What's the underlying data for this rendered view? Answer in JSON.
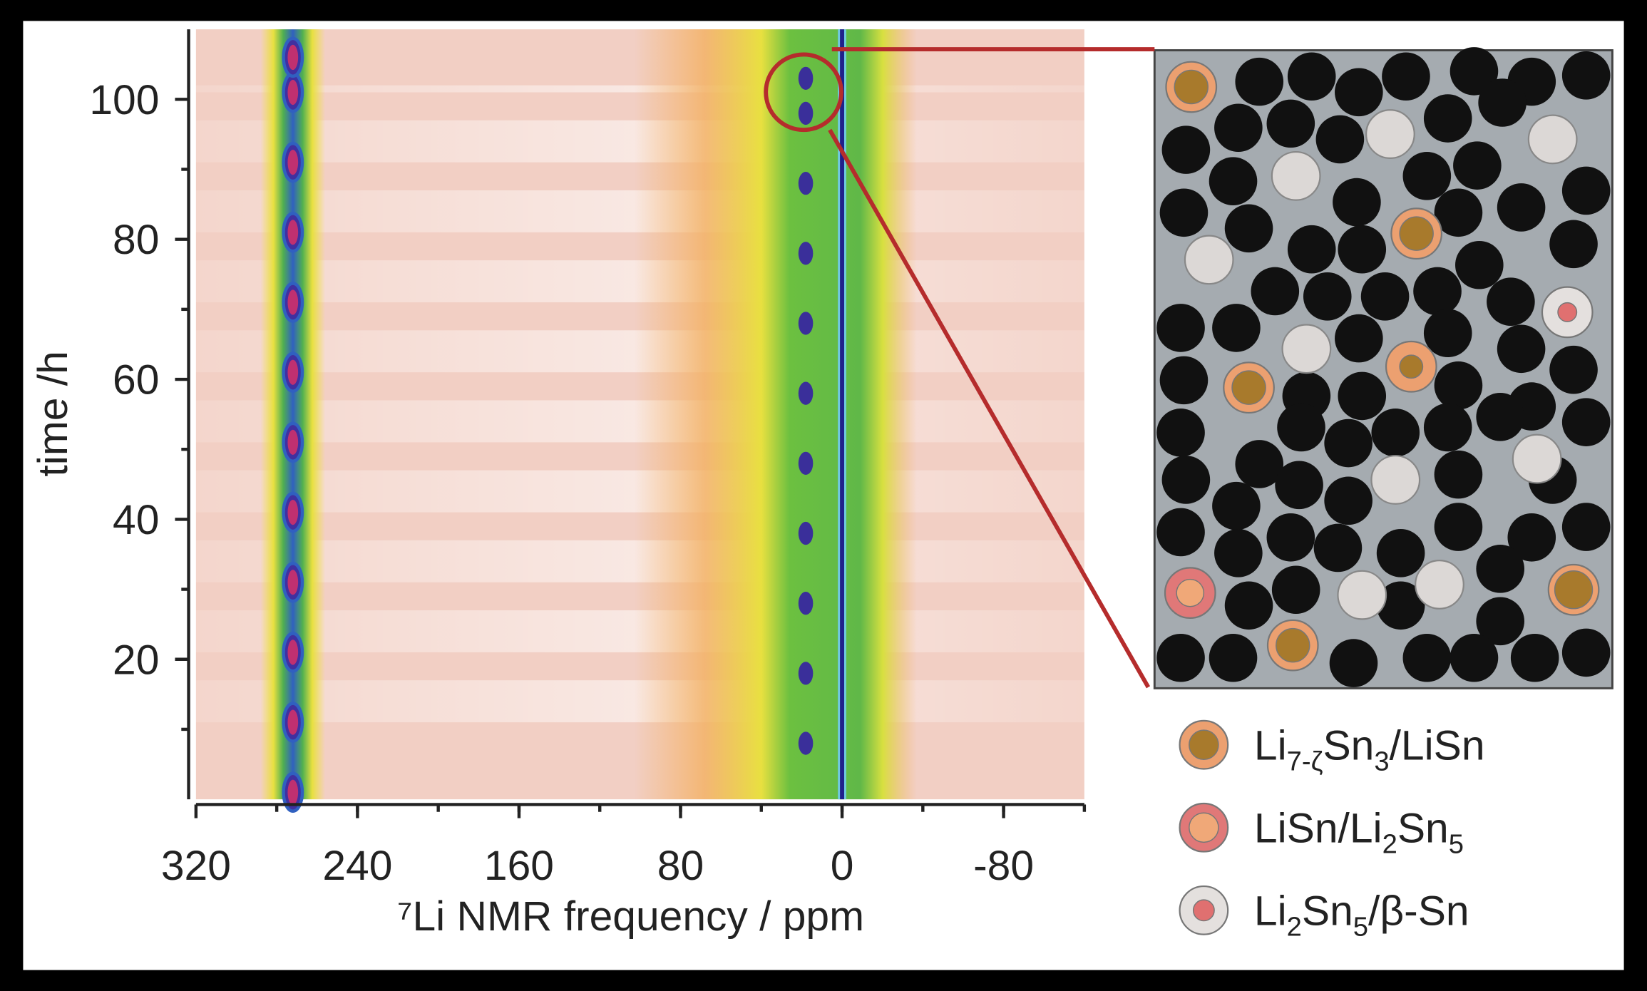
{
  "chart_data": {
    "type": "contour",
    "xlabel": "⁷Li NMR frequency / ppm",
    "ylabel": "time /h",
    "xlim": [
      320,
      -120
    ],
    "ylim": [
      0,
      110
    ],
    "xticks": [
      320,
      240,
      160,
      80,
      0,
      -80
    ],
    "yticks": [
      20,
      40,
      60,
      80,
      100
    ],
    "peaks_ppm": [
      272,
      18,
      0
    ],
    "peak_dots_h": [
      [
        1,
        11,
        21,
        31,
        41,
        51,
        61,
        71,
        81,
        91,
        101,
        106
      ],
      [
        8,
        18,
        28,
        38,
        48,
        58,
        68,
        78,
        88,
        98,
        103
      ]
    ],
    "legend": [
      [
        "Li",
        "7-ζ",
        "Sn",
        "3",
        "/LiSn"
      ],
      [
        "LiSn/Li",
        "2",
        "Sn",
        "5"
      ],
      [
        "Li",
        "2",
        "Sn",
        "5",
        "/β-Sn"
      ]
    ]
  }
}
